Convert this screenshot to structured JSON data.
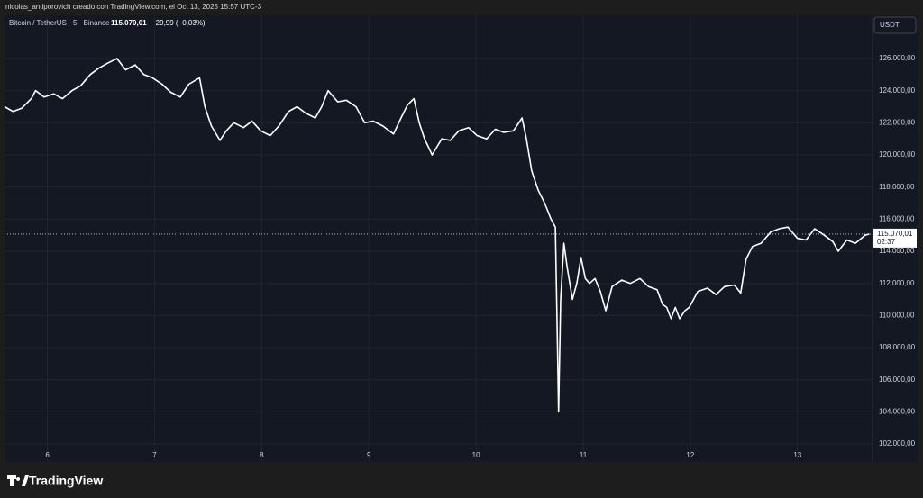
{
  "attribution": "nicolas_antiporovich creado con TradingView.com, el Oct 13, 2025 15:57 UTC-3",
  "brand": "TradingView",
  "chart_data": {
    "type": "line",
    "symbol": "Bitcoin / TetherUS · 5 · Binance",
    "change": "−29,99 (−0,03%)",
    "currency": "USDT",
    "price_line": {
      "value": 115070.01,
      "label": "115.070,01",
      "countdown": "02:37"
    },
    "grid": true,
    "xlim": [
      5.6,
      13.7
    ],
    "xticks": [
      6,
      7,
      8,
      9,
      10,
      11,
      12,
      13
    ],
    "ylim": [
      100880,
      128690
    ],
    "yticks": [
      {
        "value": 102000,
        "label": "102.000,00"
      },
      {
        "value": 104000,
        "label": "104.000,00"
      },
      {
        "value": 106000,
        "label": "106.000,00"
      },
      {
        "value": 108000,
        "label": "108.000,00"
      },
      {
        "value": 110000,
        "label": "110.000,00"
      },
      {
        "value": 112000,
        "label": "112.000,00"
      },
      {
        "value": 114000,
        "label": "114.000,00"
      },
      {
        "value": 116000,
        "label": "116.000,00"
      },
      {
        "value": 118000,
        "label": "118.000,00"
      },
      {
        "value": 120000,
        "label": "120.000,00"
      },
      {
        "value": 122000,
        "label": "122.000,00"
      },
      {
        "value": 124000,
        "label": "124.000,00"
      },
      {
        "value": 126000,
        "label": "126.000,00"
      }
    ],
    "x": [
      5.6,
      5.68,
      5.76,
      5.85,
      5.89,
      5.97,
      6.06,
      6.14,
      6.23,
      6.31,
      6.4,
      6.48,
      6.56,
      6.65,
      6.73,
      6.82,
      6.9,
      6.98,
      7.07,
      7.15,
      7.24,
      7.32,
      7.42,
      7.47,
      7.53,
      7.61,
      7.67,
      7.74,
      7.83,
      7.91,
      7.99,
      8.08,
      8.16,
      8.25,
      8.33,
      8.41,
      8.5,
      8.56,
      8.62,
      8.71,
      8.79,
      8.88,
      8.96,
      9.04,
      9.13,
      9.23,
      9.3,
      9.36,
      9.42,
      9.47,
      9.52,
      9.59,
      9.68,
      9.76,
      9.84,
      9.93,
      10.01,
      10.1,
      10.18,
      10.26,
      10.35,
      10.43,
      10.47,
      10.52,
      10.58,
      10.64,
      10.7,
      10.74,
      10.76,
      10.77,
      10.79,
      10.82,
      10.85,
      10.9,
      10.94,
      10.98,
      11.02,
      11.06,
      11.11,
      11.16,
      11.21,
      11.27,
      11.36,
      11.44,
      11.53,
      11.61,
      11.69,
      11.74,
      11.78,
      11.82,
      11.86,
      11.9,
      11.95,
      11.99,
      12.07,
      12.16,
      12.24,
      12.32,
      12.41,
      12.47,
      12.52,
      12.58,
      12.66,
      12.75,
      12.83,
      12.91,
      13.0,
      13.08,
      13.16,
      13.25,
      13.33,
      13.38,
      13.46,
      13.54,
      13.63,
      13.67
    ],
    "series": [
      {
        "color": "#ffffff",
        "values": [
          123000,
          122700,
          122900,
          123500,
          124000,
          123600,
          123800,
          123500,
          124000,
          124300,
          125000,
          125400,
          125700,
          126000,
          125300,
          125600,
          125000,
          124800,
          124400,
          123900,
          123600,
          124400,
          124800,
          123000,
          121800,
          120900,
          121500,
          122000,
          121700,
          122100,
          121500,
          121200,
          121800,
          122700,
          123000,
          122600,
          122300,
          123000,
          124000,
          123300,
          123400,
          123000,
          122000,
          122100,
          121800,
          121300,
          122300,
          123100,
          123500,
          122000,
          121000,
          120000,
          121000,
          120900,
          121500,
          121700,
          121200,
          121000,
          121600,
          121400,
          121500,
          122300,
          121000,
          119000,
          117800,
          117000,
          116000,
          115500,
          108000,
          104000,
          111000,
          114500,
          113000,
          111000,
          112000,
          113600,
          112300,
          112000,
          112300,
          111500,
          110300,
          111800,
          112200,
          112000,
          112300,
          111800,
          111600,
          110700,
          110500,
          109800,
          110500,
          109800,
          110300,
          110500,
          111500,
          111700,
          111300,
          111800,
          111900,
          111400,
          113500,
          114300,
          114500,
          115200,
          115400,
          115500,
          114800,
          114700,
          115400,
          115000,
          114600,
          114000,
          114700,
          114500,
          115000,
          115070.01
        ]
      }
    ]
  }
}
